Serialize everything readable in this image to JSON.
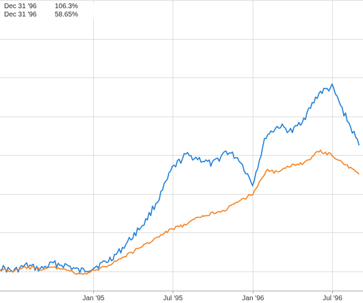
{
  "readout": {
    "rows": [
      {
        "date": "Dec 31 '96",
        "value": "106.3%"
      },
      {
        "date": "Dec 31 '96",
        "value": "58.65%"
      }
    ]
  },
  "colors": {
    "series_1": "#1f7fd9",
    "series_2": "#f58220",
    "grid": "#dddddd",
    "axis": "#aaaaaa"
  },
  "chart_data": {
    "type": "line",
    "title": "",
    "xlabel": "",
    "ylabel": "",
    "x_axis": {
      "type": "date",
      "range": [
        "1994-06-01",
        "1996-09-10"
      ],
      "ticks": [
        {
          "date": "1995-01-01",
          "label": "Jan '95"
        },
        {
          "date": "1995-07-01",
          "label": "Jul '95"
        },
        {
          "date": "1996-01-01",
          "label": "Jan '96"
        },
        {
          "date": "1996-07-01",
          "label": "Jul '96"
        }
      ]
    },
    "y_axis": {
      "unit": "%",
      "range": [
        -10,
        140
      ],
      "gridlines": [
        0,
        20,
        40,
        60,
        80,
        100,
        120,
        140
      ],
      "tick_labels_visible": false
    },
    "grid": true,
    "legend": "none",
    "series": [
      {
        "color": "#1f7fd9",
        "points": [
          [
            "1994-06-01",
            2
          ],
          [
            "1994-07-01",
            0
          ],
          [
            "1994-08-01",
            3
          ],
          [
            "1994-09-01",
            1
          ],
          [
            "1994-10-01",
            4
          ],
          [
            "1994-11-01",
            3
          ],
          [
            "1994-12-01",
            0
          ],
          [
            "1995-01-01",
            2
          ],
          [
            "1995-02-01",
            5
          ],
          [
            "1995-03-01",
            10
          ],
          [
            "1995-04-01",
            18
          ],
          [
            "1995-05-01",
            26
          ],
          [
            "1995-06-01",
            38
          ],
          [
            "1995-07-01",
            53
          ],
          [
            "1995-08-01",
            60
          ],
          [
            "1995-09-01",
            58
          ],
          [
            "1995-10-01",
            55
          ],
          [
            "1995-11-01",
            62
          ],
          [
            "1995-12-01",
            58
          ],
          [
            "1996-01-01",
            45
          ],
          [
            "1996-02-01",
            70
          ],
          [
            "1996-03-01",
            75
          ],
          [
            "1996-04-01",
            72
          ],
          [
            "1996-05-01",
            80
          ],
          [
            "1996-06-01",
            92
          ],
          [
            "1996-07-01",
            95
          ],
          [
            "1996-08-01",
            80
          ],
          [
            "1996-09-01",
            65
          ]
        ]
      },
      {
        "color": "#f58220",
        "points": [
          [
            "1994-06-01",
            1
          ],
          [
            "1994-07-01",
            0
          ],
          [
            "1994-08-01",
            2
          ],
          [
            "1994-09-01",
            1
          ],
          [
            "1994-10-01",
            2
          ],
          [
            "1994-11-01",
            1
          ],
          [
            "1994-12-01",
            -2
          ],
          [
            "1995-01-01",
            0
          ],
          [
            "1995-02-01",
            3
          ],
          [
            "1995-03-01",
            6
          ],
          [
            "1995-04-01",
            10
          ],
          [
            "1995-05-01",
            14
          ],
          [
            "1995-06-01",
            18
          ],
          [
            "1995-07-01",
            22
          ],
          [
            "1995-08-01",
            24
          ],
          [
            "1995-09-01",
            28
          ],
          [
            "1995-10-01",
            30
          ],
          [
            "1995-11-01",
            32
          ],
          [
            "1995-12-01",
            36
          ],
          [
            "1996-01-01",
            40
          ],
          [
            "1996-02-01",
            52
          ],
          [
            "1996-03-01",
            51
          ],
          [
            "1996-04-01",
            55
          ],
          [
            "1996-05-01",
            56
          ],
          [
            "1996-06-01",
            62
          ],
          [
            "1996-07-01",
            60
          ],
          [
            "1996-08-01",
            55
          ],
          [
            "1996-09-01",
            50
          ]
        ]
      }
    ]
  }
}
